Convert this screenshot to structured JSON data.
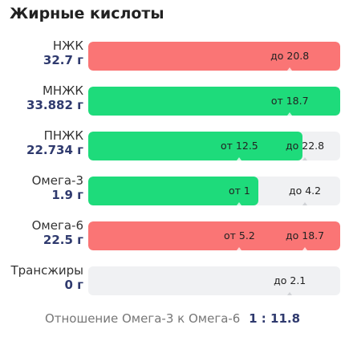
{
  "title": "Жирные кислоты",
  "colors": {
    "high": "#fa7575",
    "normal": "#1edb7b",
    "track": "#f0f1f3"
  },
  "rows": [
    {
      "name": "НЖК",
      "value": "32.7 г",
      "status": "high",
      "fill_fraction": 1.0,
      "markers": [
        {
          "text": "до 20.8",
          "pos": 0.8
        }
      ]
    },
    {
      "name": "МНЖК",
      "value": "33.882 г",
      "status": "normal",
      "fill_fraction": 1.0,
      "markers": [
        {
          "text": "от 18.7",
          "pos": 0.8
        }
      ]
    },
    {
      "name": "ПНЖК",
      "value": "22.734 г",
      "status": "normal",
      "fill_fraction": 0.85,
      "markers": [
        {
          "text": "от 12.5",
          "pos": 0.6
        },
        {
          "text": "до 22.8",
          "pos": 0.86
        }
      ]
    },
    {
      "name": "Омега-3",
      "value": "1.9 г",
      "status": "normal",
      "fill_fraction": 0.675,
      "markers": [
        {
          "text": "от 1",
          "pos": 0.6
        },
        {
          "text": "до 4.2",
          "pos": 0.86
        }
      ]
    },
    {
      "name": "Омега-6",
      "value": "22.5 г",
      "status": "high",
      "fill_fraction": 1.0,
      "markers": [
        {
          "text": "от 5.2",
          "pos": 0.6
        },
        {
          "text": "до 18.7",
          "pos": 0.86
        }
      ]
    },
    {
      "name": "Трансжиры",
      "value": "0 г",
      "status": "none",
      "fill_fraction": 0,
      "markers": [
        {
          "text": "до 2.1",
          "pos": 0.8
        }
      ]
    }
  ],
  "footer": {
    "label": "Отношение Омега-3 к Омега-6",
    "ratio": "1 : 11.8"
  }
}
